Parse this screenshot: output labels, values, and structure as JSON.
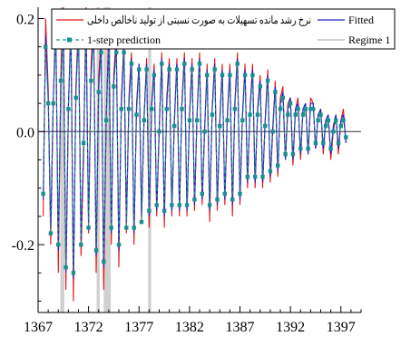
{
  "chart_data": {
    "type": "line",
    "title": "",
    "xlabel": "",
    "ylabel": "",
    "xlim": [
      1367,
      1399
    ],
    "ylim": [
      -0.32,
      0.22
    ],
    "x_ticks": [
      1367,
      1372,
      1377,
      1382,
      1387,
      1392,
      1397
    ],
    "x_tick_labels": [
      "1367",
      "1372",
      "1377",
      "1382",
      "1387",
      "1392",
      "1397"
    ],
    "y_ticks": [
      0.2,
      0.0,
      -0.2
    ],
    "y_tick_labels": [
      "0.2",
      "0.0",
      "-0.2"
    ],
    "grid": false,
    "legend_placement": "top",
    "legend": [
      {
        "label": "نرخ رشد مانده تسهیلات به صورت نسبتی از تولید ناخالص داخلی",
        "color": "#e8141b",
        "style": "solid"
      },
      {
        "label": "Fitted",
        "color": "#2020c8",
        "style": "solid"
      },
      {
        "label": "1-step prediction",
        "color": "#1a9090",
        "style": "dashed-markers"
      },
      {
        "label": "Regime 1",
        "color": "#b4b4b4",
        "style": "solid"
      }
    ],
    "regime_1_intervals": [
      [
        1369.2,
        1369.6
      ],
      [
        1372.8,
        1373.1
      ],
      [
        1373.5,
        1374.2
      ],
      [
        1377.9,
        1378.2
      ]
    ],
    "series": [
      {
        "name": "نرخ رشد مانده تسهیلات به صورت نسبتی از تولید ناخالص داخلی",
        "color": "#e8141b",
        "x": [
          1367.5,
          1367.75,
          1368.0,
          1368.25,
          1368.5,
          1368.75,
          1369.0,
          1369.25,
          1369.5,
          1369.75,
          1370.0,
          1370.25,
          1370.5,
          1370.75,
          1371.0,
          1371.25,
          1371.5,
          1371.75,
          1372.0,
          1372.25,
          1372.5,
          1372.75,
          1373.0,
          1373.25,
          1373.5,
          1373.75,
          1374.0,
          1374.25,
          1374.5,
          1374.75,
          1375.0,
          1375.25,
          1375.5,
          1375.75,
          1376.0,
          1376.25,
          1376.5,
          1376.75,
          1377.0,
          1377.25,
          1377.5,
          1377.75,
          1378.0,
          1378.25,
          1378.5,
          1378.75,
          1379.0,
          1379.25,
          1379.5,
          1379.75,
          1380.0,
          1380.25,
          1380.5,
          1380.75,
          1381.0,
          1381.25,
          1381.5,
          1381.75,
          1382.0,
          1382.25,
          1382.5,
          1382.75,
          1383.0,
          1383.25,
          1383.5,
          1383.75,
          1384.0,
          1384.25,
          1384.5,
          1384.75,
          1385.0,
          1385.25,
          1385.5,
          1385.75,
          1386.0,
          1386.25,
          1386.5,
          1386.75,
          1387.0,
          1387.25,
          1387.5,
          1387.75,
          1388.0,
          1388.25,
          1388.5,
          1388.75,
          1389.0,
          1389.25,
          1389.5,
          1389.75,
          1390.0,
          1390.25,
          1390.5,
          1390.75,
          1391.0,
          1391.25,
          1391.5,
          1391.75,
          1392.0,
          1392.25,
          1392.5,
          1392.75,
          1393.0,
          1393.25,
          1393.5,
          1393.75,
          1394.0,
          1394.25,
          1394.5,
          1394.75,
          1395.0,
          1395.25,
          1395.5,
          1395.75,
          1396.0,
          1396.25,
          1396.5,
          1396.75,
          1397.0,
          1397.25,
          1397.5
        ],
        "values": [
          -0.15,
          0.2,
          0.08,
          -0.2,
          0.05,
          0.21,
          -0.25,
          0.1,
          0.22,
          -0.28,
          0.04,
          0.2,
          -0.3,
          0.08,
          0.2,
          -0.22,
          -0.05,
          0.22,
          -0.18,
          0.12,
          0.2,
          -0.25,
          0.1,
          0.16,
          -0.28,
          0.02,
          0.18,
          -0.2,
          0.1,
          0.17,
          -0.24,
          0.06,
          0.16,
          -0.18,
          0.06,
          0.14,
          -0.2,
          0.05,
          0.12,
          -0.16,
          0.02,
          0.13,
          -0.17,
          0.05,
          0.12,
          -0.15,
          0.0,
          0.14,
          -0.17,
          0.06,
          0.13,
          -0.15,
          0.02,
          0.13,
          -0.15,
          0.05,
          0.14,
          -0.15,
          0.03,
          0.13,
          -0.14,
          0.03,
          0.14,
          -0.13,
          0.0,
          0.12,
          -0.16,
          0.04,
          0.13,
          -0.14,
          0.02,
          0.12,
          -0.13,
          0.03,
          0.12,
          -0.15,
          0.05,
          0.14,
          -0.13,
          0.03,
          0.12,
          -0.1,
          0.04,
          0.12,
          -0.1,
          0.04,
          0.1,
          -0.1,
          0.02,
          0.11,
          -0.09,
          0.0,
          0.09,
          -0.08,
          0.06,
          0.08,
          -0.05,
          0.05,
          0.06,
          -0.06,
          0.04,
          0.06,
          -0.05,
          0.04,
          0.05,
          -0.04,
          0.06,
          0.05,
          -0.03,
          0.03,
          0.04,
          -0.04,
          0.02,
          0.03,
          -0.05,
          0.0,
          0.03,
          -0.04,
          0.02,
          0.04,
          -0.02
        ]
      },
      {
        "name": "Fitted",
        "color": "#2020c8",
        "x": [
          1367.5,
          1367.75,
          1368.0,
          1368.25,
          1368.5,
          1368.75,
          1369.0,
          1369.25,
          1369.5,
          1369.75,
          1370.0,
          1370.25,
          1370.5,
          1370.75,
          1371.0,
          1371.25,
          1371.5,
          1371.75,
          1372.0,
          1372.25,
          1372.5,
          1372.75,
          1373.0,
          1373.25,
          1373.5,
          1373.75,
          1374.0,
          1374.25,
          1374.5,
          1374.75,
          1375.0,
          1375.25,
          1375.5,
          1375.75,
          1376.0,
          1376.25,
          1376.5,
          1376.75,
          1377.0,
          1377.25,
          1377.5,
          1377.75,
          1378.0,
          1378.25,
          1378.5,
          1378.75,
          1379.0,
          1379.25,
          1379.5,
          1379.75,
          1380.0,
          1380.25,
          1380.5,
          1380.75,
          1381.0,
          1381.25,
          1381.5,
          1381.75,
          1382.0,
          1382.25,
          1382.5,
          1382.75,
          1383.0,
          1383.25,
          1383.5,
          1383.75,
          1384.0,
          1384.25,
          1384.5,
          1384.75,
          1385.0,
          1385.25,
          1385.5,
          1385.75,
          1386.0,
          1386.25,
          1386.5,
          1386.75,
          1387.0,
          1387.25,
          1387.5,
          1387.75,
          1388.0,
          1388.25,
          1388.5,
          1388.75,
          1389.0,
          1389.25,
          1389.5,
          1389.75,
          1390.0,
          1390.25,
          1390.5,
          1390.75,
          1391.0,
          1391.25,
          1391.5,
          1391.75,
          1392.0,
          1392.25,
          1392.5,
          1392.75,
          1393.0,
          1393.25,
          1393.5,
          1393.75,
          1394.0,
          1394.25,
          1394.5,
          1394.75,
          1395.0,
          1395.25,
          1395.5,
          1395.75,
          1396.0,
          1396.25,
          1396.5,
          1396.75,
          1397.0,
          1397.25,
          1397.5
        ],
        "values": [
          -0.12,
          0.17,
          0.06,
          -0.17,
          0.06,
          0.18,
          -0.21,
          0.08,
          0.19,
          -0.25,
          0.05,
          0.17,
          -0.26,
          0.07,
          0.18,
          -0.19,
          -0.03,
          0.19,
          -0.16,
          0.1,
          0.18,
          -0.22,
          0.08,
          0.15,
          -0.24,
          0.03,
          0.16,
          -0.18,
          0.09,
          0.15,
          -0.21,
          0.05,
          0.15,
          -0.16,
          0.05,
          0.13,
          -0.18,
          0.04,
          0.12,
          -0.15,
          0.03,
          0.12,
          -0.15,
          0.05,
          0.11,
          -0.14,
          0.01,
          0.13,
          -0.15,
          0.05,
          0.12,
          -0.14,
          0.02,
          0.12,
          -0.14,
          0.05,
          0.13,
          -0.14,
          0.03,
          0.12,
          -0.13,
          0.03,
          0.13,
          -0.12,
          0.01,
          0.11,
          -0.14,
          0.04,
          0.12,
          -0.13,
          0.02,
          0.11,
          -0.12,
          0.03,
          0.11,
          -0.13,
          0.05,
          0.13,
          -0.12,
          0.03,
          0.11,
          -0.09,
          0.04,
          0.11,
          -0.09,
          0.04,
          0.09,
          -0.09,
          0.02,
          0.1,
          -0.08,
          0.01,
          0.08,
          -0.07,
          0.05,
          0.07,
          -0.05,
          0.04,
          0.06,
          -0.05,
          0.04,
          0.05,
          -0.04,
          0.04,
          0.05,
          -0.04,
          0.05,
          0.05,
          -0.03,
          0.03,
          0.04,
          -0.03,
          0.02,
          0.03,
          -0.04,
          0.01,
          0.03,
          -0.03,
          0.02,
          0.03,
          -0.02
        ]
      },
      {
        "name": "1-step prediction",
        "color": "#1a9090",
        "x": [
          1367.5,
          1367.75,
          1368.0,
          1368.25,
          1368.5,
          1368.75,
          1369.0,
          1369.25,
          1369.5,
          1369.75,
          1370.0,
          1370.25,
          1370.5,
          1370.75,
          1371.0,
          1371.25,
          1371.5,
          1371.75,
          1372.0,
          1372.25,
          1372.5,
          1372.75,
          1373.0,
          1373.25,
          1373.5,
          1373.75,
          1374.0,
          1374.25,
          1374.5,
          1374.75,
          1375.0,
          1375.25,
          1375.5,
          1375.75,
          1376.0,
          1376.25,
          1376.5,
          1376.75,
          1377.0,
          1377.25,
          1377.5,
          1377.75,
          1378.0,
          1378.25,
          1378.5,
          1378.75,
          1379.0,
          1379.25,
          1379.5,
          1379.75,
          1380.0,
          1380.25,
          1380.5,
          1380.75,
          1381.0,
          1381.25,
          1381.5,
          1381.75,
          1382.0,
          1382.25,
          1382.5,
          1382.75,
          1383.0,
          1383.25,
          1383.5,
          1383.75,
          1384.0,
          1384.25,
          1384.5,
          1384.75,
          1385.0,
          1385.25,
          1385.5,
          1385.75,
          1386.0,
          1386.25,
          1386.5,
          1386.75,
          1387.0,
          1387.25,
          1387.5,
          1387.75,
          1388.0,
          1388.25,
          1388.5,
          1388.75,
          1389.0,
          1389.25,
          1389.5,
          1389.75,
          1390.0,
          1390.25,
          1390.5,
          1390.75,
          1391.0,
          1391.25,
          1391.5,
          1391.75,
          1392.0,
          1392.25,
          1392.5,
          1392.75,
          1393.0,
          1393.25,
          1393.5,
          1393.75,
          1394.0,
          1394.25,
          1394.5,
          1394.75,
          1395.0,
          1395.25,
          1395.5,
          1395.75,
          1396.0,
          1396.25,
          1396.5,
          1396.75,
          1397.0,
          1397.25,
          1397.5
        ],
        "values": [
          -0.11,
          0.15,
          0.05,
          -0.18,
          0.05,
          0.17,
          -0.2,
          0.09,
          0.18,
          -0.24,
          0.04,
          0.16,
          -0.25,
          0.06,
          0.17,
          -0.2,
          -0.02,
          0.18,
          -0.17,
          0.09,
          0.17,
          -0.21,
          0.07,
          0.14,
          -0.23,
          0.02,
          0.15,
          -0.17,
          0.08,
          0.14,
          -0.2,
          0.04,
          0.14,
          -0.17,
          0.04,
          0.12,
          -0.17,
          0.03,
          0.11,
          -0.16,
          0.02,
          0.11,
          -0.14,
          0.04,
          0.1,
          -0.13,
          0.0,
          0.12,
          -0.14,
          0.04,
          0.11,
          -0.13,
          0.01,
          0.11,
          -0.13,
          0.04,
          0.12,
          -0.13,
          0.02,
          0.11,
          -0.12,
          0.02,
          0.12,
          -0.11,
          0.0,
          0.1,
          -0.13,
          0.03,
          0.11,
          -0.12,
          0.01,
          0.1,
          -0.11,
          0.02,
          0.1,
          -0.12,
          0.04,
          0.12,
          -0.11,
          0.02,
          0.1,
          -0.08,
          0.03,
          0.1,
          -0.08,
          0.03,
          0.08,
          -0.08,
          0.01,
          0.09,
          -0.07,
          0.0,
          0.07,
          -0.06,
          0.04,
          0.06,
          -0.04,
          0.03,
          0.05,
          -0.04,
          0.03,
          0.04,
          -0.03,
          0.03,
          0.04,
          -0.03,
          0.04,
          0.04,
          -0.02,
          0.02,
          0.03,
          -0.02,
          0.01,
          0.02,
          -0.03,
          0.0,
          0.02,
          -0.02,
          0.01,
          0.02,
          -0.01
        ]
      }
    ]
  }
}
